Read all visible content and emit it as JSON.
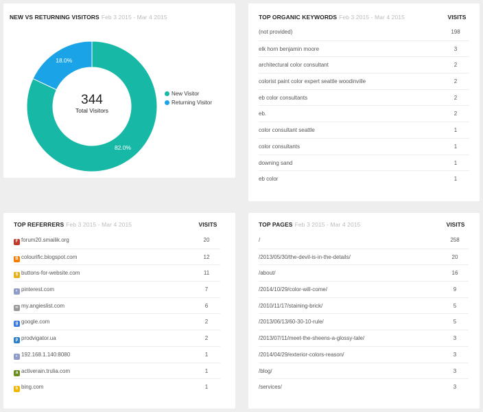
{
  "visitors_panel": {
    "title": "NEW VS RETURNING VISITORS",
    "date_range": "Feb 3 2015 - Mar 4 2015",
    "total_value": "344",
    "total_label": "Total Visitors"
  },
  "chart_data": {
    "type": "pie",
    "title": "NEW VS RETURNING VISITORS",
    "subtitle": "Feb 3 2015 - Mar 4 2015",
    "categories": [
      "New Visitor",
      "Returning Visitor"
    ],
    "values": [
      82.0,
      18.0
    ],
    "labels": [
      "82.0%",
      "18.0%"
    ],
    "colors": [
      "#18b8a6",
      "#1aa3e6"
    ],
    "legend_placement": "right",
    "donut": true,
    "center_text": [
      "344",
      "Total Visitors"
    ]
  },
  "keywords_panel": {
    "title": "TOP ORGANIC KEYWORDS",
    "date_range": "Feb 3 2015 - Mar 4 2015",
    "col_visits": "VISITS",
    "rows": [
      {
        "label": "(not provided)",
        "visits": "198"
      },
      {
        "label": "elk horn benjamin moore",
        "visits": "3"
      },
      {
        "label": "architectural color consultant",
        "visits": "2"
      },
      {
        "label": "colorist paint color expert seattle woodinville",
        "visits": "2"
      },
      {
        "label": "eb color consultants",
        "visits": "2"
      },
      {
        "label": "eb.",
        "visits": "2"
      },
      {
        "label": "color consultant seattle",
        "visits": "1"
      },
      {
        "label": "color consultants",
        "visits": "1"
      },
      {
        "label": "downing sand",
        "visits": "1"
      },
      {
        "label": "eb color",
        "visits": "1"
      }
    ]
  },
  "referrers_panel": {
    "title": "TOP REFERRERS",
    "date_range": "Feb 3 2015 - Mar 4 2015",
    "col_visits": "VISITS",
    "rows": [
      {
        "label": "forum20.smailik.org",
        "visits": "20",
        "icon": "forum-icon",
        "color": "#c0392b",
        "glyph": "F"
      },
      {
        "label": "colourific.blogspot.com",
        "visits": "12",
        "icon": "blogger-icon",
        "color": "#f57d00",
        "glyph": "B"
      },
      {
        "label": "buttons-for-website.com",
        "visits": "11",
        "icon": "coin-icon",
        "color": "#e8b01a",
        "glyph": "$"
      },
      {
        "label": "pinterest.com",
        "visits": "7",
        "icon": "globe-icon",
        "color": "#8e9cc7",
        "glyph": "◐"
      },
      {
        "label": "my.angieslist.com",
        "visits": "6",
        "icon": "link-icon",
        "color": "#9a9a9a",
        "glyph": "∞"
      },
      {
        "label": "google.com",
        "visits": "2",
        "icon": "google-icon",
        "color": "#3b7be0",
        "glyph": "g"
      },
      {
        "label": "prodvigator.ua",
        "visits": "2",
        "icon": "prodvigator-icon",
        "color": "#2d7fc8",
        "glyph": "p"
      },
      {
        "label": "192.168.1.140:8080",
        "visits": "1",
        "icon": "globe-icon",
        "color": "#8e9cc7",
        "glyph": "◐"
      },
      {
        "label": "activerain.trulia.com",
        "visits": "1",
        "icon": "activerain-icon",
        "color": "#6b8e23",
        "glyph": "a"
      },
      {
        "label": "bing.com",
        "visits": "1",
        "icon": "bing-icon",
        "color": "#f2b700",
        "glyph": "b"
      }
    ]
  },
  "pages_panel": {
    "title": "TOP PAGES",
    "date_range": "Feb 3 2015 - Mar 4 2015",
    "col_visits": "VISITS",
    "rows": [
      {
        "label": "/",
        "visits": "258"
      },
      {
        "label": "/2013/05/30/the-devil-is-in-the-details/",
        "visits": "20"
      },
      {
        "label": "/about/",
        "visits": "16"
      },
      {
        "label": "/2014/10/29/color-will-come/",
        "visits": "9"
      },
      {
        "label": "/2010/11/17/staining-brick/",
        "visits": "5"
      },
      {
        "label": "/2013/06/13/60-30-10-rule/",
        "visits": "5"
      },
      {
        "label": "/2013/07/11/meet-the-sheens-a-glossy-tale/",
        "visits": "3"
      },
      {
        "label": "/2014/04/29/exterior-colors-reason/",
        "visits": "3"
      },
      {
        "label": "/blog/",
        "visits": "3"
      },
      {
        "label": "/services/",
        "visits": "3"
      }
    ]
  }
}
